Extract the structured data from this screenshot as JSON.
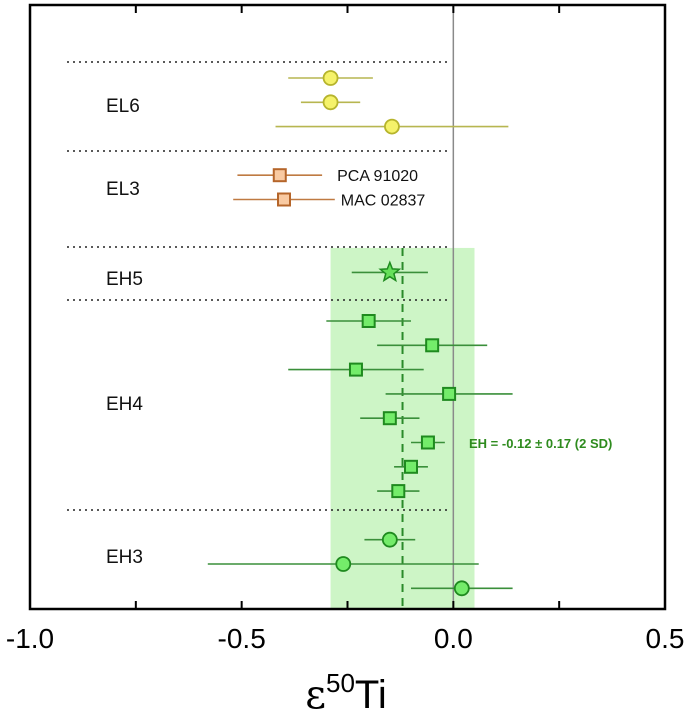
{
  "chart_data": {
    "type": "scatter",
    "subtype": "forest-plot-with-error-bars",
    "title": "",
    "xlabel": "ε50Ti",
    "xlabel_base": "ε",
    "xlabel_sup": "50",
    "xlabel_tail": "Ti",
    "ylabel": "",
    "xlim": [
      -1.0,
      0.5
    ],
    "x_ticks": [
      -1.0,
      -0.75,
      -0.5,
      -0.25,
      0.0,
      0.25,
      0.5
    ],
    "x_tick_labels": [
      {
        "value": -1.0,
        "label": "-1.0"
      },
      {
        "value": -0.5,
        "label": "-0.5"
      },
      {
        "value": 0.0,
        "label": "0.0"
      },
      {
        "value": 0.5,
        "label": "0.5"
      }
    ],
    "grid": false,
    "reference_line": {
      "x": 0.0,
      "color": "#8a8a8a"
    },
    "band": {
      "label": "EH = -0.12 ± 0.17 (2 SD)",
      "mean": -0.12,
      "lower": -0.29,
      "upper": 0.05,
      "fill": "#cdf5c6",
      "line_color": "#2a8a2a",
      "text_color": "#2e8b1e",
      "from_row": 7
    },
    "row_count": 22,
    "group_separators": [
      -1,
      3,
      7,
      9,
      18
    ],
    "groups": [
      {
        "name": "EL6",
        "row_center": 1.1
      },
      {
        "name": "EL3",
        "row_center": 4.5
      },
      {
        "name": "EH5",
        "row_center": 8.2
      },
      {
        "name": "EH4",
        "row_center": 13.3
      },
      {
        "name": "EH3",
        "row_center": 19.7
      }
    ],
    "styles": {
      "EL6": {
        "marker": "circle",
        "fill": "#f5f26a",
        "stroke": "#b6b42c",
        "line": "#b7b650"
      },
      "EL3": {
        "marker": "square",
        "fill": "#f9caa2",
        "stroke": "#b5652a",
        "line": "#bf7a42"
      },
      "EH5": {
        "marker": "star",
        "fill": "#66e05a",
        "stroke": "#1f8a1f",
        "line": "#3a8f3a"
      },
      "EH4": {
        "marker": "square",
        "fill": "#74ec6a",
        "stroke": "#1f8a1f",
        "line": "#3a8f3a"
      },
      "EH3": {
        "marker": "circle",
        "fill": "#74ec6a",
        "stroke": "#1f8a1f",
        "line": "#3a8f3a"
      }
    },
    "series": [
      {
        "group": "EL6",
        "row": 0,
        "x": -0.29,
        "xmin": -0.39,
        "xmax": -0.19,
        "label": ""
      },
      {
        "group": "EL6",
        "row": 1,
        "x": -0.29,
        "xmin": -0.36,
        "xmax": -0.22,
        "label": ""
      },
      {
        "group": "EL6",
        "row": 2,
        "x": -0.145,
        "xmin": -0.42,
        "xmax": 0.13,
        "label": ""
      },
      {
        "group": "EL3",
        "row": 4,
        "x": -0.41,
        "xmin": -0.51,
        "xmax": -0.31,
        "label": "PCA 91020"
      },
      {
        "group": "EL3",
        "row": 5,
        "x": -0.4,
        "xmin": -0.52,
        "xmax": -0.28,
        "label": "MAC 02837"
      },
      {
        "group": "EH5",
        "row": 8,
        "x": -0.15,
        "xmin": -0.24,
        "xmax": -0.06,
        "label": ""
      },
      {
        "group": "EH4",
        "row": 10,
        "x": -0.2,
        "xmin": -0.3,
        "xmax": -0.1,
        "label": ""
      },
      {
        "group": "EH4",
        "row": 11,
        "x": -0.05,
        "xmin": -0.18,
        "xmax": 0.08,
        "label": ""
      },
      {
        "group": "EH4",
        "row": 12,
        "x": -0.23,
        "xmin": -0.39,
        "xmax": -0.07,
        "label": ""
      },
      {
        "group": "EH4",
        "row": 13,
        "x": -0.01,
        "xmin": -0.16,
        "xmax": 0.14,
        "label": ""
      },
      {
        "group": "EH4",
        "row": 14,
        "x": -0.15,
        "xmin": -0.22,
        "xmax": -0.08,
        "label": ""
      },
      {
        "group": "EH4",
        "row": 15,
        "x": -0.06,
        "xmin": -0.1,
        "xmax": -0.02,
        "label": ""
      },
      {
        "group": "EH4",
        "row": 16,
        "x": -0.1,
        "xmin": -0.14,
        "xmax": -0.06,
        "label": ""
      },
      {
        "group": "EH4",
        "row": 17,
        "x": -0.13,
        "xmin": -0.18,
        "xmax": -0.08,
        "label": ""
      },
      {
        "group": "EH3",
        "row": 19,
        "x": -0.15,
        "xmin": -0.21,
        "xmax": -0.09,
        "label": ""
      },
      {
        "group": "EH3",
        "row": 20,
        "x": -0.26,
        "xmin": -0.58,
        "xmax": 0.06,
        "label": ""
      },
      {
        "group": "EH3",
        "row": 21,
        "x": 0.02,
        "xmin": -0.1,
        "xmax": 0.14,
        "label": ""
      }
    ]
  }
}
